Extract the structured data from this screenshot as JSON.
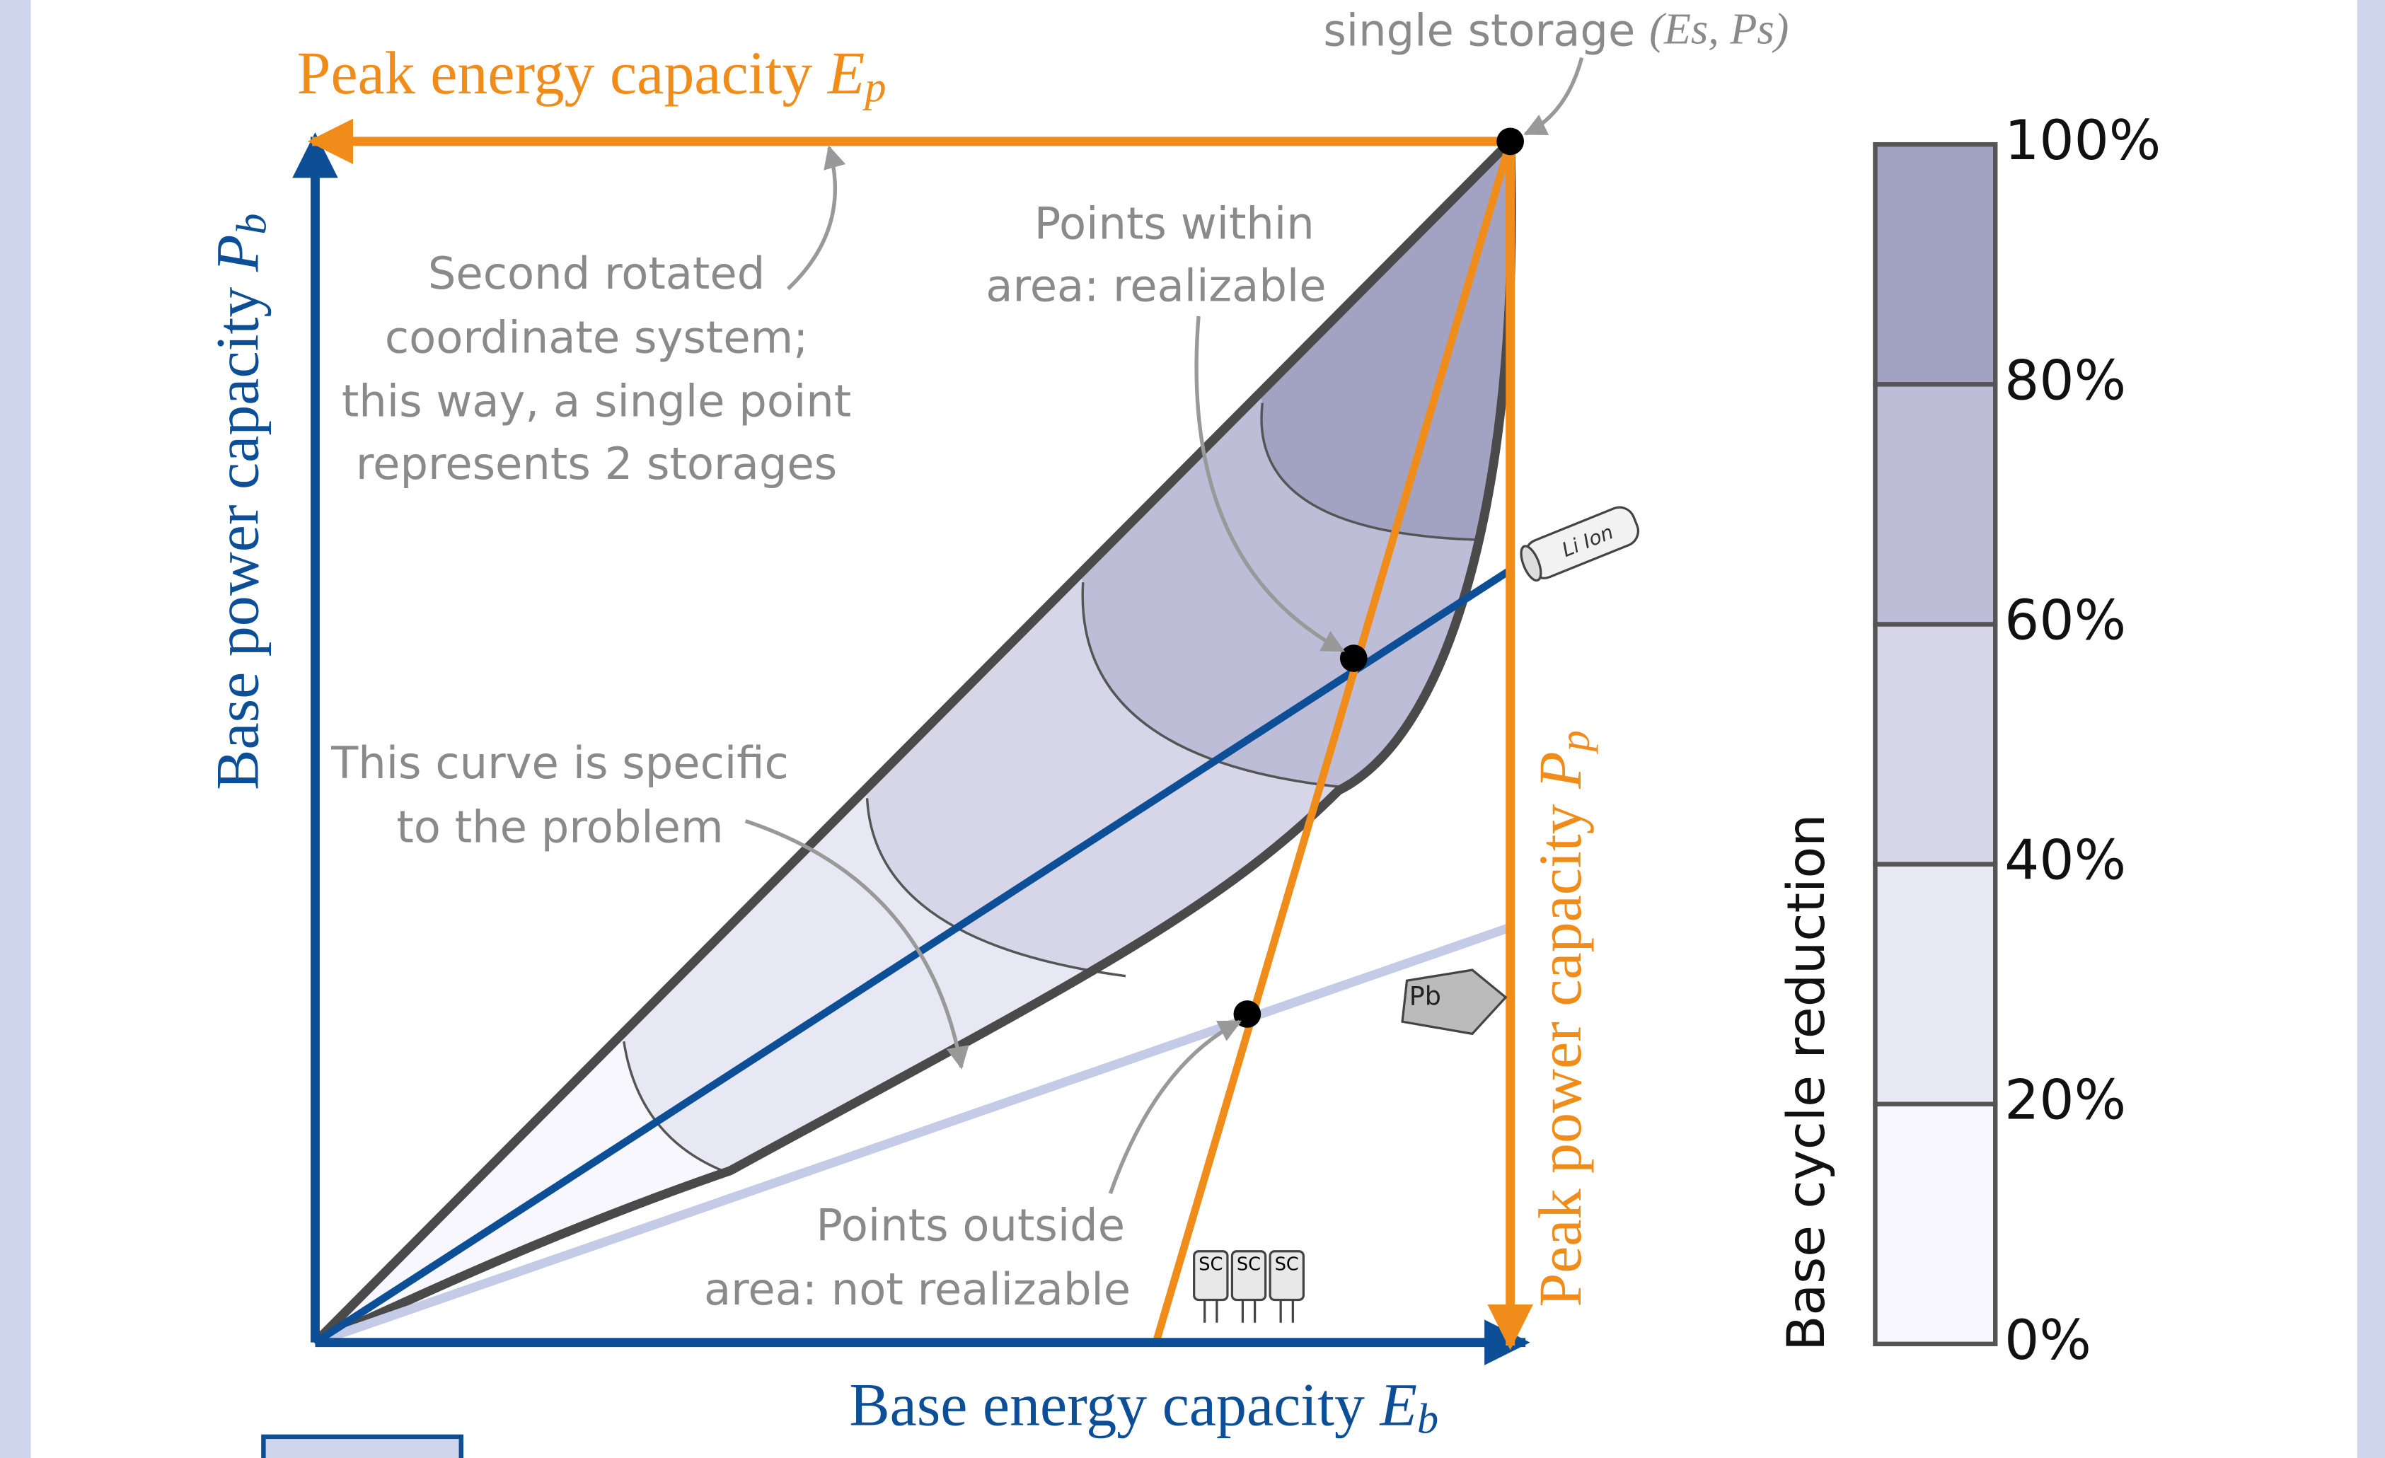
{
  "single_storage": {
    "text": "single storage",
    "math": "(Es, Ps)"
  },
  "axes": {
    "peak_energy": {
      "text": "Peak energy capacity",
      "symbol": "E",
      "subscript": "p"
    },
    "base_power": {
      "text": "Base power capacity",
      "symbol": "P",
      "subscript": "b"
    },
    "base_energy": {
      "text": "Base energy capacity",
      "symbol": "E",
      "subscript": "b"
    },
    "peak_power": {
      "text": "Peak power capacity",
      "symbol": "P",
      "subscript": "p"
    }
  },
  "annotations": {
    "rotated_system": [
      "Second rotated",
      "coordinate system;",
      "this way, a single point",
      "represents 2 storages"
    ],
    "within": [
      "Points within",
      "area: realizable"
    ],
    "curve": [
      "This curve is specific",
      "to the problem"
    ],
    "outside": [
      "Points outside",
      "area: not realizable"
    ]
  },
  "icons": {
    "liion": "Li Ion",
    "pb": "Pb",
    "sc": [
      "SC",
      "SC",
      "SC"
    ]
  },
  "colorbar": {
    "title": "Base cycle reduction",
    "ticks": [
      "0%",
      "20%",
      "40%",
      "60%",
      "80%",
      "100%"
    ]
  }
}
